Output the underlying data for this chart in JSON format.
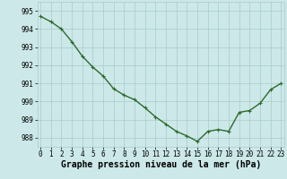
{
  "x": [
    0,
    1,
    2,
    3,
    4,
    5,
    6,
    7,
    8,
    9,
    10,
    11,
    12,
    13,
    14,
    15,
    16,
    17,
    18,
    19,
    20,
    21,
    22,
    23
  ],
  "y": [
    994.7,
    994.4,
    994.0,
    993.3,
    992.5,
    991.9,
    991.4,
    990.7,
    990.35,
    990.1,
    989.65,
    989.15,
    988.75,
    988.35,
    988.1,
    987.8,
    988.35,
    988.45,
    988.35,
    989.4,
    989.5,
    989.9,
    990.65,
    991.0
  ],
  "line_color": "#2d6a2d",
  "marker": "+",
  "marker_size": 3,
  "line_width": 1.0,
  "bg_color": "#cce8e8",
  "grid_color": "#aacaca",
  "xlabel": "Graphe pression niveau de la mer (hPa)",
  "xlabel_fontsize": 7,
  "yticks": [
    988,
    989,
    990,
    991,
    992,
    993,
    994,
    995
  ],
  "xticks": [
    0,
    1,
    2,
    3,
    4,
    5,
    6,
    7,
    8,
    9,
    10,
    11,
    12,
    13,
    14,
    15,
    16,
    17,
    18,
    19,
    20,
    21,
    22,
    23
  ],
  "ylim": [
    987.5,
    995.5
  ],
  "xlim": [
    -0.3,
    23.3
  ],
  "tick_fontsize": 5.5
}
